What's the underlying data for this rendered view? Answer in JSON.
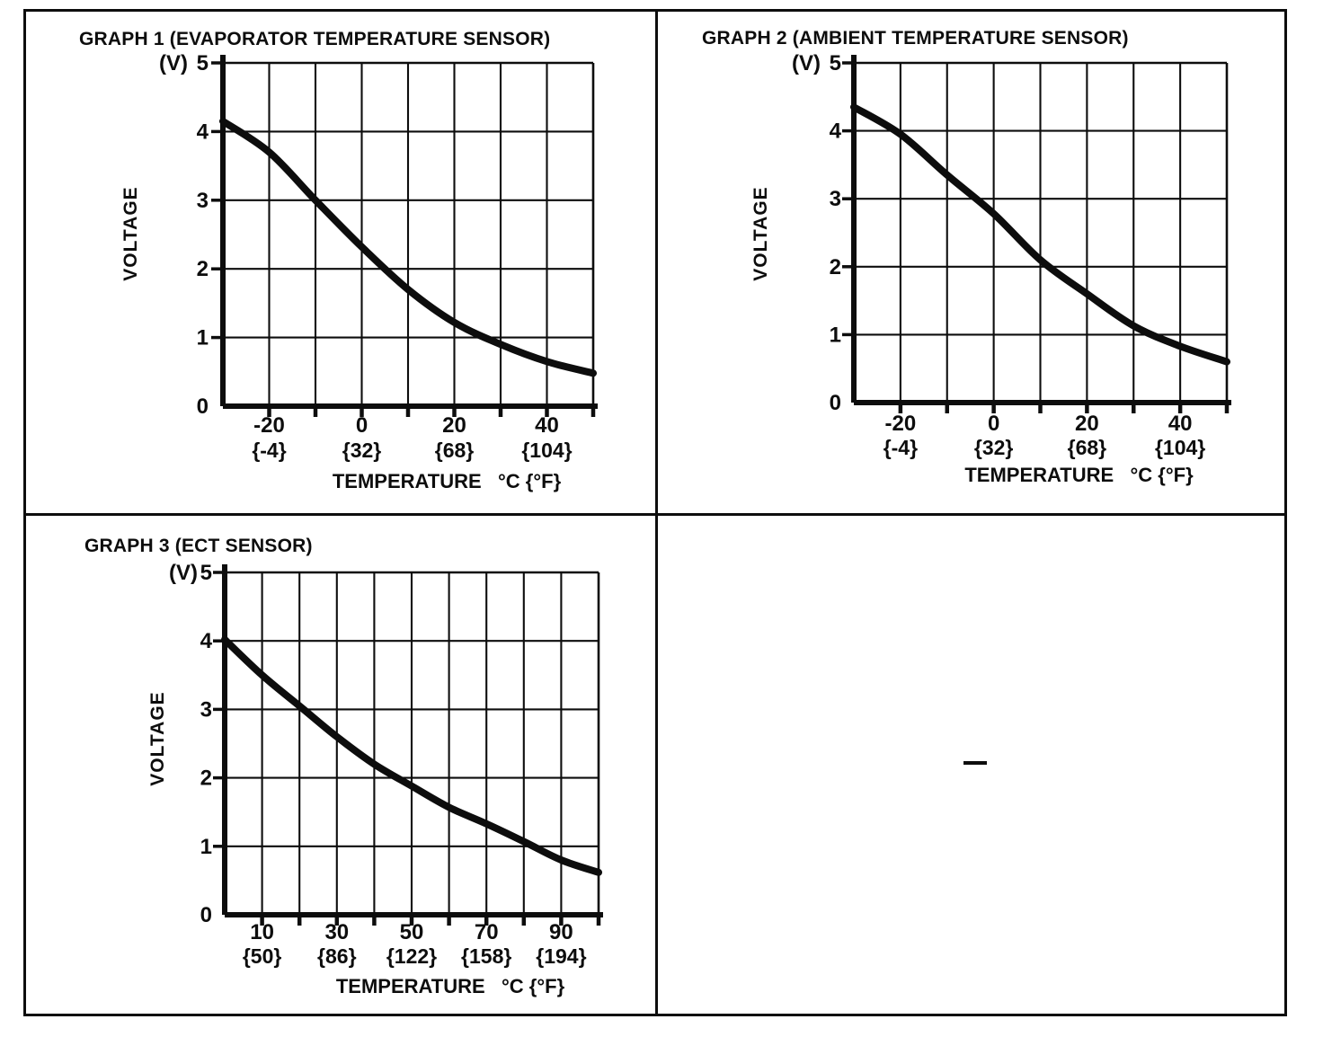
{
  "page": {
    "background": "#ffffff",
    "ink": "#0d0d0d"
  },
  "panels": [
    {
      "title": "GRAPH 1 (EVAPORATOR TEMPERATURE SENSOR)"
    },
    {
      "title": "GRAPH 2 (AMBIENT TEMPERATURE SENSOR)"
    },
    {
      "title": "GRAPH 3 (ECT SENSOR)"
    }
  ],
  "chart_data": [
    {
      "type": "line",
      "title": "GRAPH 1 (EVAPORATOR TEMPERATURE SENSOR)",
      "ylabel": "VOLTAGE",
      "y_unit": "(V)",
      "xlabel": "TEMPERATURE   °C {°F}",
      "xlim": [
        -30,
        50
      ],
      "ylim": [
        0,
        5
      ],
      "x_grid_step": 10,
      "y_grid_step": 1,
      "grid": true,
      "legend": "none",
      "y_tick_labels": [
        "0",
        "1",
        "2",
        "3",
        "4",
        "5"
      ],
      "x_ticks": [
        {
          "value": -20,
          "celsius": "-20",
          "fahrenheit": "{-4}"
        },
        {
          "value": 0,
          "celsius": "0",
          "fahrenheit": "{32}"
        },
        {
          "value": 20,
          "celsius": "20",
          "fahrenheit": "{68}"
        },
        {
          "value": 40,
          "celsius": "40",
          "fahrenheit": "{104}"
        }
      ],
      "x": [
        -30,
        -20,
        -10,
        0,
        10,
        20,
        30,
        40,
        50
      ],
      "y": [
        4.15,
        3.7,
        3.0,
        2.32,
        1.7,
        1.22,
        0.9,
        0.65,
        0.48
      ]
    },
    {
      "type": "line",
      "title": "GRAPH 2 (AMBIENT TEMPERATURE SENSOR)",
      "ylabel": "VOLTAGE",
      "y_unit": "(V)",
      "xlabel": "TEMPERATURE   °C {°F}",
      "xlim": [
        -30,
        50
      ],
      "ylim": [
        0,
        5
      ],
      "x_grid_step": 10,
      "y_grid_step": 1,
      "grid": true,
      "legend": "none",
      "y_tick_labels": [
        "0",
        "1",
        "2",
        "3",
        "4",
        "5"
      ],
      "x_ticks": [
        {
          "value": -20,
          "celsius": "-20",
          "fahrenheit": "{-4}"
        },
        {
          "value": 0,
          "celsius": "0",
          "fahrenheit": "{32}"
        },
        {
          "value": 20,
          "celsius": "20",
          "fahrenheit": "{68}"
        },
        {
          "value": 40,
          "celsius": "40",
          "fahrenheit": "{104}"
        }
      ],
      "x": [
        -30,
        -20,
        -10,
        0,
        10,
        20,
        30,
        40,
        50
      ],
      "y": [
        4.35,
        3.95,
        3.35,
        2.78,
        2.1,
        1.6,
        1.13,
        0.83,
        0.6
      ]
    },
    {
      "type": "line",
      "title": "GRAPH 3 (ECT SENSOR)",
      "ylabel": "VOLTAGE",
      "y_unit": "(V)",
      "xlabel": "TEMPERATURE   °C {°F}",
      "xlim": [
        0,
        100
      ],
      "ylim": [
        0,
        5
      ],
      "x_grid_step": 10,
      "y_grid_step": 1,
      "grid": true,
      "legend": "none",
      "y_tick_labels": [
        "0",
        "1",
        "2",
        "3",
        "4",
        "5"
      ],
      "x_ticks": [
        {
          "value": 10,
          "celsius": "10",
          "fahrenheit": "{50}"
        },
        {
          "value": 30,
          "celsius": "30",
          "fahrenheit": "{86}"
        },
        {
          "value": 50,
          "celsius": "50",
          "fahrenheit": "{122}"
        },
        {
          "value": 70,
          "celsius": "70",
          "fahrenheit": "{158}"
        },
        {
          "value": 90,
          "celsius": "90",
          "fahrenheit": "{194}"
        }
      ],
      "x": [
        0,
        10,
        20,
        30,
        40,
        50,
        60,
        70,
        80,
        90,
        100
      ],
      "y": [
        4.02,
        3.5,
        3.05,
        2.6,
        2.2,
        1.88,
        1.57,
        1.33,
        1.07,
        0.8,
        0.62
      ]
    }
  ]
}
